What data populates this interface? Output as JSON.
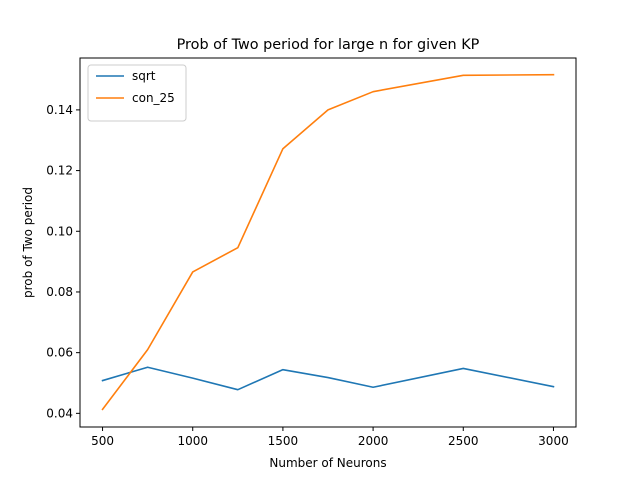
{
  "chart_data": {
    "type": "line",
    "title": "Prob of Two period for large n for given KP",
    "xlabel": "Number of Neurons",
    "ylabel": "prob of Two period",
    "x": [
      500,
      750,
      1000,
      1250,
      1500,
      1750,
      2000,
      2500,
      3000
    ],
    "xticks": [
      500,
      1000,
      1500,
      2000,
      2500,
      3000
    ],
    "yticks": [
      0.04,
      0.06,
      0.08,
      0.1,
      0.12,
      0.14
    ],
    "ytick_labels": [
      "0.04",
      "0.06",
      "0.08",
      "0.10",
      "0.12",
      "0.14"
    ],
    "xlim": [
      375,
      3125
    ],
    "ylim": [
      0.0355,
      0.1571
    ],
    "grid": false,
    "legend_position": "top-left",
    "series": [
      {
        "name": "sqrt",
        "color": "#1f77b4",
        "values": [
          0.0508,
          0.0552,
          0.0516,
          0.0478,
          0.0544,
          0.0518,
          0.0486,
          0.0548,
          0.0488
        ]
      },
      {
        "name": "con_25",
        "color": "#ff7f0e",
        "values": [
          0.0413,
          0.061,
          0.0866,
          0.0946,
          0.1272,
          0.14,
          0.146,
          0.1514,
          0.1516
        ]
      }
    ]
  }
}
